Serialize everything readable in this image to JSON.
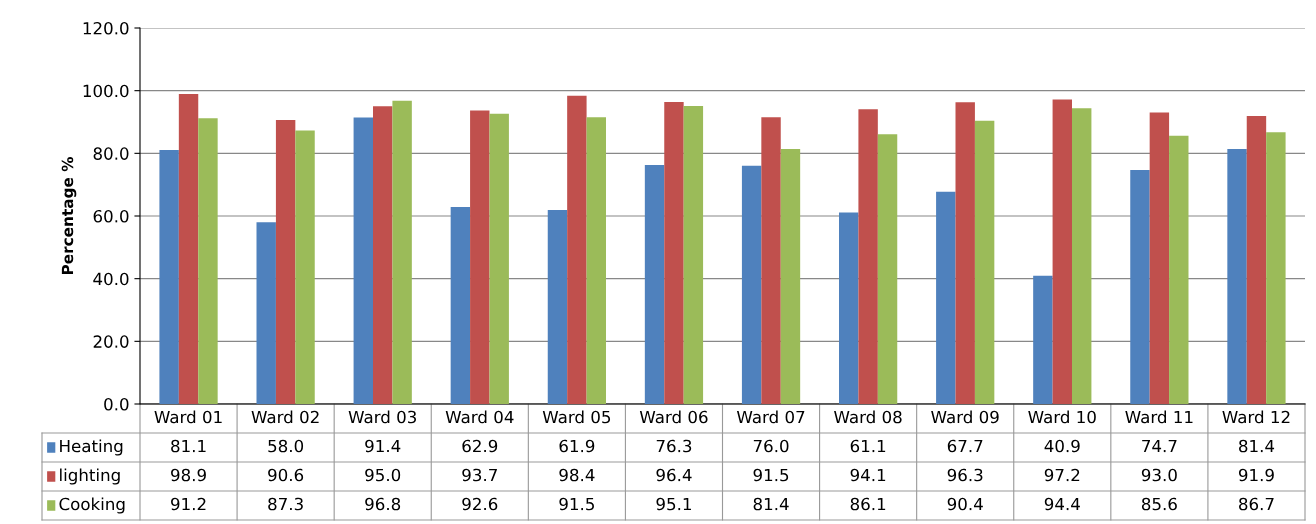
{
  "chart_data": {
    "type": "bar",
    "ylabel": "Percentage %",
    "categories": [
      "Ward 01",
      "Ward 02",
      "Ward 03",
      "Ward 04",
      "Ward 05",
      "Ward 06",
      "Ward 07",
      "Ward 08",
      "Ward 09",
      "Ward 10",
      "Ward 11",
      "Ward 12"
    ],
    "series": [
      {
        "name": "Heating",
        "color": "#4f81bd",
        "values": [
          81.1,
          58.0,
          91.4,
          62.9,
          61.9,
          76.3,
          76.0,
          61.1,
          67.7,
          40.9,
          74.7,
          81.4
        ],
        "value_labels": [
          "81.1",
          "58.0",
          "91.4",
          "62.9",
          "61.9",
          "76.3",
          "76.0",
          "61.1",
          "67.7",
          "40.9",
          "74.7",
          "81.4"
        ]
      },
      {
        "name": "lighting",
        "color": "#c0504d",
        "values": [
          98.9,
          90.6,
          95.0,
          93.7,
          98.4,
          96.4,
          91.5,
          94.1,
          96.3,
          97.2,
          93.0,
          91.9
        ],
        "value_labels": [
          "98.9",
          "90.6",
          "95.0",
          "93.7",
          "98.4",
          "96.4",
          "91.5",
          "94.1",
          "96.3",
          "97.2",
          "93.0",
          "91.9"
        ]
      },
      {
        "name": "Cooking",
        "color": "#9bbb59",
        "values": [
          91.2,
          87.3,
          96.8,
          92.6,
          91.5,
          95.1,
          81.4,
          86.1,
          90.4,
          94.4,
          85.6,
          86.7
        ],
        "value_labels": [
          "91.2",
          "87.3",
          "96.8",
          "92.6",
          "91.5",
          "95.1",
          "81.4",
          "86.1",
          "90.4",
          "94.4",
          "85.6",
          "86.7"
        ]
      }
    ],
    "ylim": [
      0,
      120
    ],
    "yticks": [
      {
        "value": 0,
        "label": "0.0"
      },
      {
        "value": 20,
        "label": "20.0"
      },
      {
        "value": 40,
        "label": "40.0"
      },
      {
        "value": 60,
        "label": "60.0"
      },
      {
        "value": 80,
        "label": "80.0"
      },
      {
        "value": 100,
        "label": "100.0"
      },
      {
        "value": 120,
        "label": "120.0"
      }
    ],
    "grid": "y",
    "legend": "bottom"
  }
}
